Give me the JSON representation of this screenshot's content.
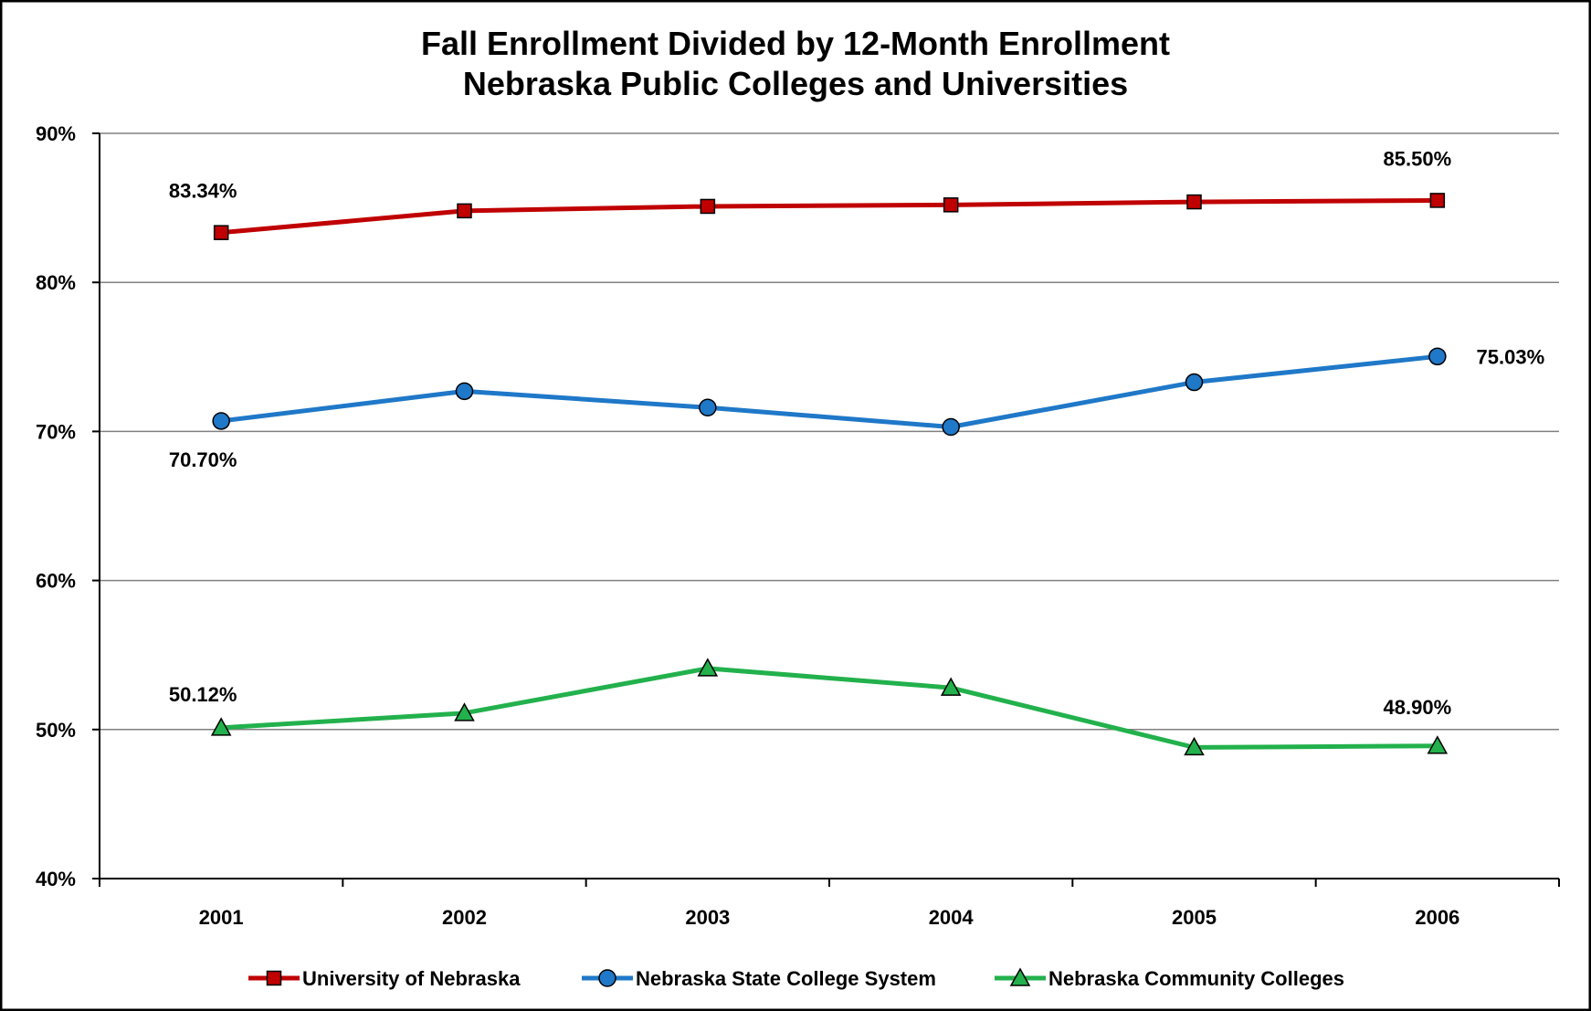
{
  "chart_data": {
    "type": "line",
    "title": "Fall Enrollment Divided by 12-Month Enrollment",
    "subtitle": "Nebraska Public Colleges and Universities",
    "xlabel": "",
    "ylabel": "",
    "categories": [
      "2001",
      "2002",
      "2003",
      "2004",
      "2005",
      "2006"
    ],
    "ylim": [
      40,
      90
    ],
    "y_ticks": [
      40,
      50,
      60,
      70,
      80,
      90
    ],
    "y_tick_labels": [
      "40%",
      "50%",
      "60%",
      "70%",
      "80%",
      "90%"
    ],
    "grid": true,
    "legend_position": "bottom",
    "series": [
      {
        "name": "University of Nebraska",
        "color": "#c00000",
        "marker": "square",
        "values": [
          83.34,
          84.8,
          85.1,
          85.2,
          85.4,
          85.5
        ]
      },
      {
        "name": "Nebraska State College System",
        "color": "#1f78c8",
        "marker": "circle",
        "values": [
          70.7,
          72.7,
          71.6,
          70.3,
          73.3,
          75.03
        ]
      },
      {
        "name": "Nebraska Community Colleges",
        "color": "#22b14c",
        "marker": "triangle",
        "values": [
          50.12,
          51.1,
          54.1,
          52.8,
          48.8,
          48.9
        ]
      }
    ],
    "annotations": [
      {
        "series": 0,
        "index": 0,
        "text": "83.34%"
      },
      {
        "series": 0,
        "index": 5,
        "text": "85.50%"
      },
      {
        "series": 1,
        "index": 0,
        "text": "70.70%"
      },
      {
        "series": 1,
        "index": 5,
        "text": "75.03%"
      },
      {
        "series": 2,
        "index": 0,
        "text": "50.12%"
      },
      {
        "series": 2,
        "index": 5,
        "text": "48.90%"
      }
    ]
  }
}
